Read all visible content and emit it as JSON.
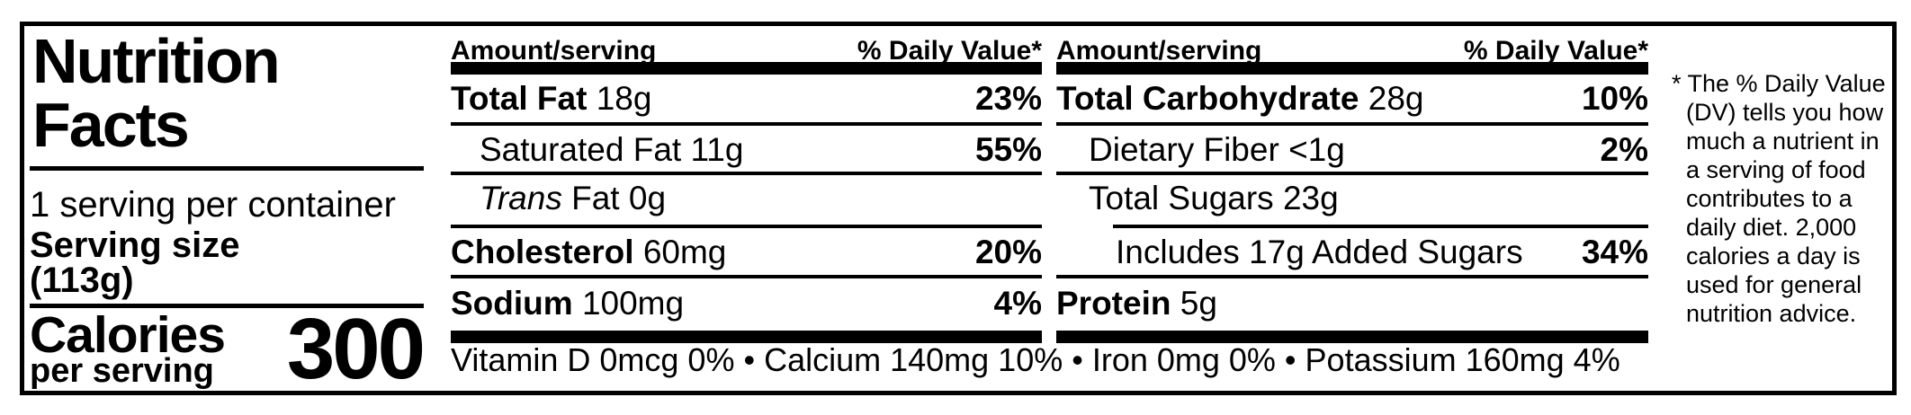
{
  "label": {
    "title": "Nutrition\nFacts",
    "servings_per_container": "1 serving per container",
    "serving_size_label": "Serving size",
    "serving_size_value": "(113g)",
    "calories_label": "Calories",
    "calories_sublabel": "per serving",
    "calories_value": "300"
  },
  "col1": {
    "header_amount": "Amount/serving",
    "header_dv": "% Daily Value*",
    "rows": [
      {
        "name": "Total Fat",
        "amount": "18g",
        "dv": "23%"
      },
      {
        "name": "Saturated Fat",
        "amount": "11g",
        "dv": "55%"
      },
      {
        "name": "Trans",
        "amount": "Fat 0g",
        "dv": ""
      },
      {
        "name": "Cholesterol",
        "amount": "60mg",
        "dv": "20%"
      },
      {
        "name": "Sodium",
        "amount": "100mg",
        "dv": "4%"
      }
    ]
  },
  "col2": {
    "header_amount": "Amount/serving",
    "header_dv": "% Daily Value*",
    "rows": [
      {
        "name": "Total Carbohydrate",
        "amount": "28g",
        "dv": "10%"
      },
      {
        "name": "Dietary Fiber",
        "amount": "<1g",
        "dv": "2%"
      },
      {
        "name": "Total Sugars",
        "amount": "23g",
        "dv": ""
      },
      {
        "name": "Includes 17g Added Sugars",
        "amount": "",
        "dv": "34%"
      },
      {
        "name": "Protein",
        "amount": "5g",
        "dv": ""
      }
    ]
  },
  "micronutrients": "Vitamin D 0mcg 0% • Calcium 140mg 10% • Iron 0mg 0% • Potassium 160mg 4%",
  "footnote": "* The % Daily Value\n(DV) tells you how\nmuch a nutrient in\na serving of food\ncontributes to a\ndaily diet. 2,000\ncalories a day is\nused for general\nnutrition advice.",
  "colors": {
    "ink": "#000000",
    "background": "#ffffff"
  }
}
